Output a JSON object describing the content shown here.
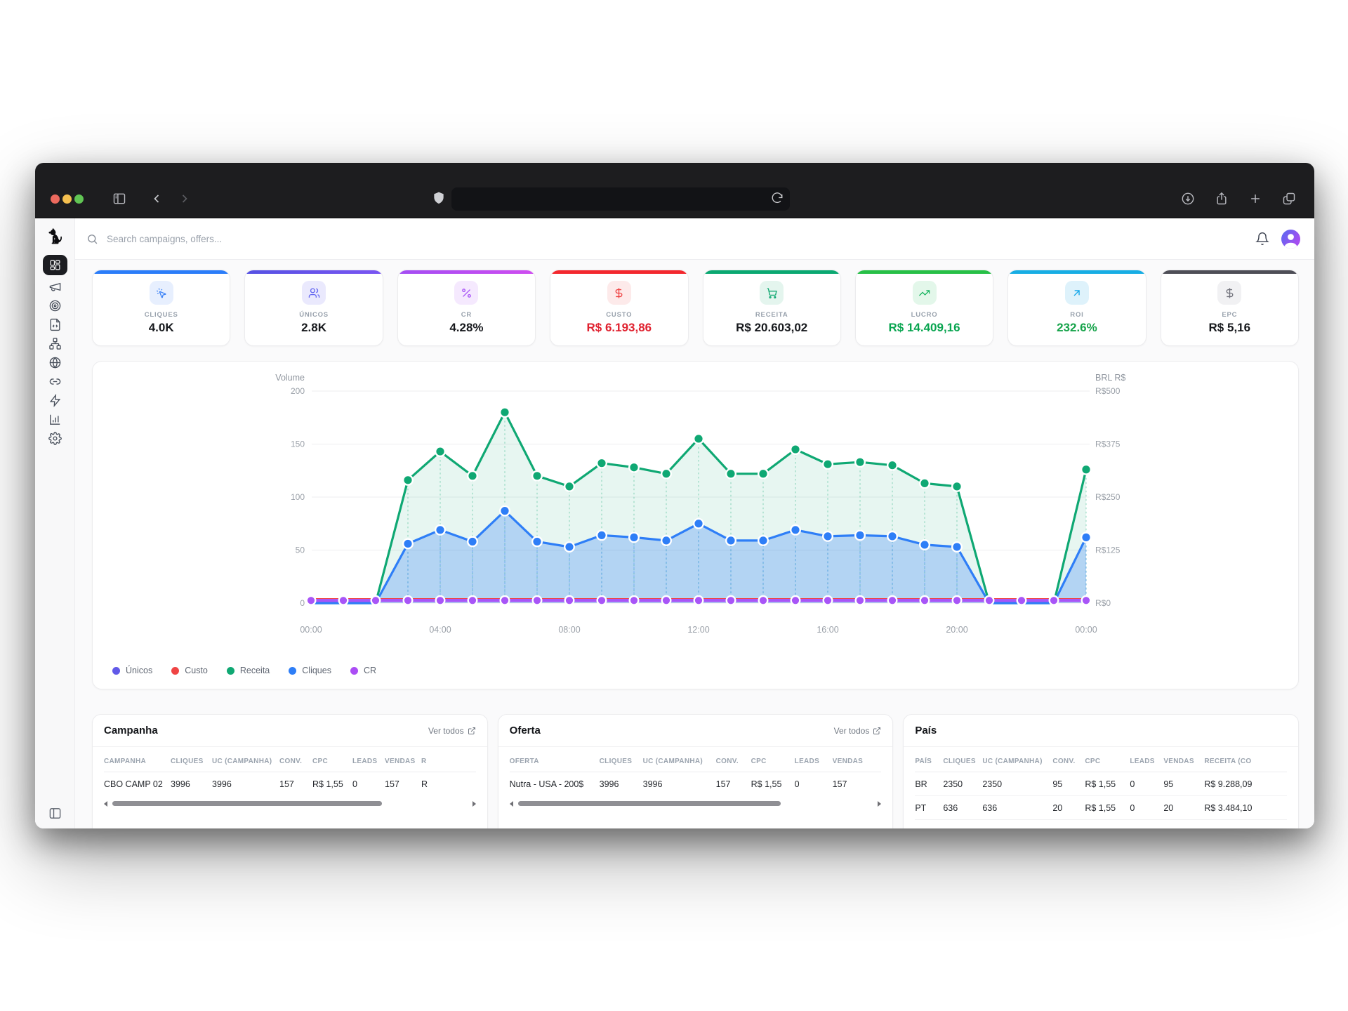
{
  "browser": {
    "traffic_lights": [
      "close",
      "minimize",
      "zoom"
    ],
    "left_icons": [
      "sidebar-toggle-icon",
      "back-icon",
      "forward-icon",
      "shield-icon"
    ],
    "urlbar_icons": [
      "reload-icon"
    ],
    "right_icons": [
      "download-icon",
      "share-icon",
      "new-tab-icon",
      "tab-overview-icon"
    ]
  },
  "topbar": {
    "search_placeholder": "Search campaigns, offers...",
    "right_icons": [
      "bell-icon",
      "user-avatar"
    ]
  },
  "sidebar": {
    "logo": "dog-logo",
    "items": [
      {
        "icon": "dashboard",
        "active": true
      },
      {
        "icon": "megaphone",
        "active": false
      },
      {
        "icon": "target",
        "active": false
      },
      {
        "icon": "file-code",
        "active": false
      },
      {
        "icon": "sitemap",
        "active": false
      },
      {
        "icon": "globe",
        "active": false
      },
      {
        "icon": "link",
        "active": false
      },
      {
        "icon": "zap",
        "active": false
      },
      {
        "icon": "bar-chart",
        "active": false
      },
      {
        "icon": "settings",
        "active": false
      }
    ],
    "bottom_icon": "panel-left"
  },
  "kpi_cards": [
    {
      "label": "CLIQUES",
      "value": "4.0K",
      "accent": "#2b7df9",
      "icon": "cursor-click",
      "icon_color": "#3b82f6",
      "tile_bg": "#e7effe",
      "value_color": "#17191d"
    },
    {
      "label": "ÚNICOS",
      "value": "2.8K",
      "accent": "#5551e3",
      "accent2": "#7a55f2",
      "icon": "users",
      "icon_color": "#6366f1",
      "tile_bg": "#eae9fd",
      "value_color": "#17191d"
    },
    {
      "label": "CR",
      "value": "4.28%",
      "accent": "#a34df3",
      "accent2": "#cf4df0",
      "icon": "percent",
      "icon_color": "#a855f7",
      "tile_bg": "#f5e9fe",
      "value_color": "#17191d"
    },
    {
      "label": "CUSTO",
      "value": "R$ 6.193,86",
      "accent": "#f3282e",
      "icon": "dollar",
      "icon_color": "#ef4444",
      "tile_bg": "#fdeaea",
      "value_color": "#e0212f"
    },
    {
      "label": "RECEITA",
      "value": "R$ 20.603,02",
      "accent": "#0ba871",
      "icon": "cart",
      "icon_color": "#0fa871",
      "tile_bg": "#e4f5ee",
      "value_color": "#17191d"
    },
    {
      "label": "LUCRO",
      "value": "R$ 14.409,16",
      "accent": "#27c047",
      "icon": "trending-up",
      "icon_color": "#18b45f",
      "tile_bg": "#e3f7ea",
      "value_color": "#09a550"
    },
    {
      "label": "ROI",
      "value": "232.6%",
      "accent": "#17ade4",
      "icon": "arrow-up-right",
      "icon_color": "#0ea5e9",
      "tile_bg": "#def2fb",
      "value_color": "#16a34a"
    },
    {
      "label": "EPC",
      "value": "R$ 5,16",
      "accent": "#4e4e57",
      "icon": "dollar",
      "icon_color": "#72737c",
      "tile_bg": "#f1f1f3",
      "value_color": "#17191d"
    }
  ],
  "chart_data": {
    "type": "line",
    "axis_left_title": "Volume",
    "axis_right_title": "BRL R$",
    "left_ticks": [
      "0",
      "50",
      "100",
      "150",
      "200"
    ],
    "left_tick_values": [
      0,
      50,
      100,
      150,
      200
    ],
    "right_ticks": [
      "R$0",
      "R$125",
      "R$250",
      "R$375",
      "R$500"
    ],
    "ylim": [
      0,
      200
    ],
    "x_ticks": [
      "00:00",
      "04:00",
      "08:00",
      "12:00",
      "16:00",
      "20:00",
      "00:00"
    ],
    "x_tick_hours": [
      0,
      4,
      8,
      12,
      16,
      20,
      24
    ],
    "grid": true,
    "legend_position": "bottom-left",
    "series": [
      {
        "name": "Únicos",
        "color": "#6366f1",
        "values": [
          0,
          0,
          0,
          56,
          69,
          58,
          87,
          58,
          53,
          64,
          62,
          59,
          75,
          59,
          59,
          69,
          63,
          64,
          63,
          55,
          53,
          0,
          0,
          0,
          62
        ]
      },
      {
        "name": "Custo",
        "color": "#ef4444",
        "values": [
          4,
          4,
          4,
          4,
          4,
          4,
          4,
          4,
          4,
          4,
          4,
          4,
          4,
          4,
          4,
          4,
          4,
          4,
          4,
          4,
          4,
          4,
          4,
          4,
          4
        ]
      },
      {
        "name": "Receita",
        "color": "#0fa873",
        "fill": "rgba(15,168,115,0.10)",
        "values": [
          0,
          0,
          0,
          116,
          143,
          120,
          180,
          120,
          110,
          132,
          128,
          122,
          155,
          122,
          122,
          145,
          131,
          133,
          130,
          113,
          110,
          0,
          0,
          0,
          126
        ]
      },
      {
        "name": "Cliques",
        "color": "#2e7ef7",
        "fill": "rgba(46,126,247,0.28)",
        "values": [
          0,
          0,
          0,
          56,
          69,
          58,
          87,
          58,
          53,
          64,
          62,
          59,
          75,
          59,
          59,
          69,
          63,
          64,
          63,
          55,
          53,
          0,
          0,
          0,
          62
        ]
      },
      {
        "name": "CR",
        "color": "#a855f7",
        "values": [
          2.5,
          2.5,
          2.5,
          2.5,
          2.5,
          2.5,
          2.5,
          2.5,
          2.5,
          2.5,
          2.5,
          2.5,
          2.5,
          2.5,
          2.5,
          2.5,
          2.5,
          2.5,
          2.5,
          2.5,
          2.5,
          2.5,
          2.5,
          2.5,
          2.5
        ]
      }
    ],
    "legend": [
      {
        "label": "Únicos",
        "color": "#6159e8"
      },
      {
        "label": "Custo",
        "color": "#ef4444"
      },
      {
        "label": "Receita",
        "color": "#0fa873"
      },
      {
        "label": "Cliques",
        "color": "#2e7ef7"
      },
      {
        "label": "CR",
        "color": "#ab4df5"
      }
    ]
  },
  "tables": {
    "campanha": {
      "title": "Campanha",
      "link_label": "Ver todos",
      "columns": [
        "CAMPANHA",
        "CLIQUES",
        "UC (CAMPANHA)",
        "CONV.",
        "CPC",
        "LEADS",
        "VENDAS",
        "R"
      ],
      "rows": [
        [
          "CBO CAMP 02",
          "3996",
          "3996",
          "157",
          "R$ 1,55",
          "0",
          "157",
          "R"
        ]
      ],
      "scrollbar_pct": 76
    },
    "oferta": {
      "title": "Oferta",
      "link_label": "Ver todos",
      "columns": [
        "OFERTA",
        "CLIQUES",
        "UC (CAMPANHA)",
        "CONV.",
        "CPC",
        "LEADS",
        "VENDAS"
      ],
      "rows": [
        [
          "Nutra - USA - 200$",
          "3996",
          "3996",
          "157",
          "R$ 1,55",
          "0",
          "157"
        ]
      ],
      "scrollbar_pct": 74
    },
    "pais": {
      "title": "País",
      "columns": [
        "PAÍS",
        "CLIQUES",
        "UC (CAMPANHA)",
        "CONV.",
        "CPC",
        "LEADS",
        "VENDAS",
        "RECEITA (CO"
      ],
      "rows": [
        [
          "BR",
          "2350",
          "2350",
          "95",
          "R$ 1,55",
          "0",
          "95",
          "R$ 9.288,09"
        ],
        [
          "PT",
          "636",
          "636",
          "20",
          "R$ 1,55",
          "0",
          "20",
          "R$ 3.484,10"
        ]
      ]
    }
  }
}
